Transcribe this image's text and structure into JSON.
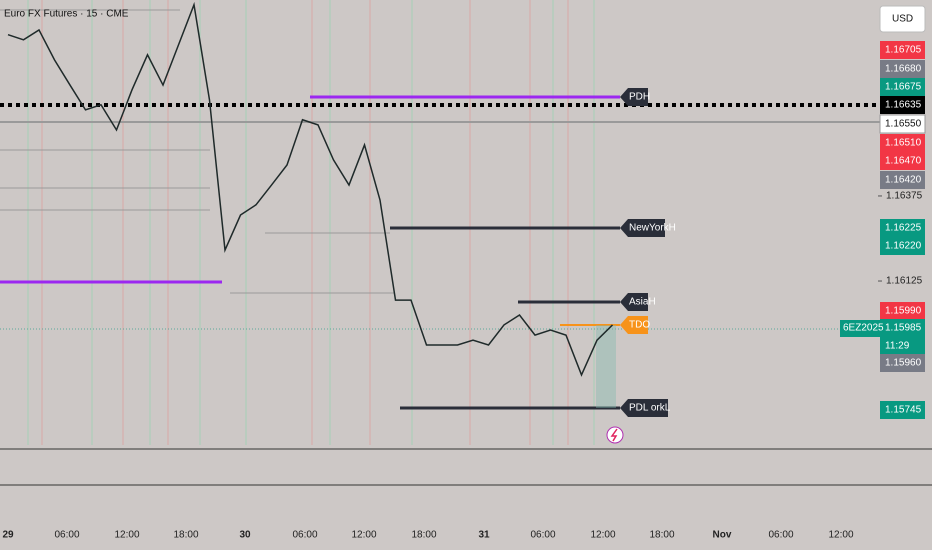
{
  "header": {
    "title": "Euro FX Futures · 15 · CME",
    "currency": "USD"
  },
  "chart_data": {
    "type": "line",
    "color": "#1f2a2a",
    "values": [
      1.16849,
      1.16834,
      1.16863,
      1.16775,
      1.16701,
      1.16628,
      1.16643,
      1.16569,
      1.16687,
      1.1679,
      1.16701,
      1.16819,
      1.16937,
      1.16657,
      1.16216,
      1.16319,
      1.16349,
      1.16407,
      1.16466,
      1.16599,
      1.16584,
      1.16481,
      1.16407,
      1.16525,
      1.16363,
      1.16069,
      1.16069,
      1.15937,
      1.15937,
      1.15937,
      1.15951,
      1.15937,
      1.15996,
      1.16025,
      1.15966,
      1.15981,
      1.15966,
      1.15849,
      1.15951,
      1.15996
    ],
    "ylim": [
      1.15643,
      1.16951
    ],
    "yticks": [
      1.16375,
      1.16125
    ],
    "x_labels": [
      "29",
      "06:00",
      "12:00",
      "18:00",
      "30",
      "06:00",
      "12:00",
      "18:00",
      "31",
      "06:00",
      "12:00",
      "18:00",
      "Nov",
      "06:00",
      "12:00"
    ]
  },
  "price_badges": [
    {
      "label": "1.16705",
      "color": "#f23645"
    },
    {
      "label": "1.16680",
      "color": "#787b86"
    },
    {
      "label": "1.16675",
      "color": "#089981"
    },
    {
      "label": "1.16635",
      "color": "#000000"
    },
    {
      "label": "1.16550",
      "color": "#ffffff"
    },
    {
      "label": "1.16510",
      "color": "#f23645"
    },
    {
      "label": "1.16470",
      "color": "#f23645"
    },
    {
      "label": "1.16420",
      "color": "#787b86"
    },
    {
      "label": "1.16225",
      "color": "#089981"
    },
    {
      "label": "1.16220",
      "color": "#089981"
    },
    {
      "label": "1.15990",
      "color": "#f23645"
    },
    {
      "label": "1.15985",
      "color": "#089981"
    },
    {
      "label": "1.15960",
      "color": "#787b86"
    },
    {
      "label": "1.15745",
      "color": "#089981"
    }
  ],
  "countdown": "11:29",
  "symbol": "6EZ2025",
  "levels": [
    {
      "label": "PDH",
      "color": "#2a2e39"
    },
    {
      "label": "NewYorkH",
      "color": "#2a2e39"
    },
    {
      "label": "AsiaH",
      "color": "#2a2e39"
    },
    {
      "label": "TDO",
      "color": "#f7931a"
    },
    {
      "label": "PDL  orkL",
      "color": "#2a2e39"
    }
  ]
}
